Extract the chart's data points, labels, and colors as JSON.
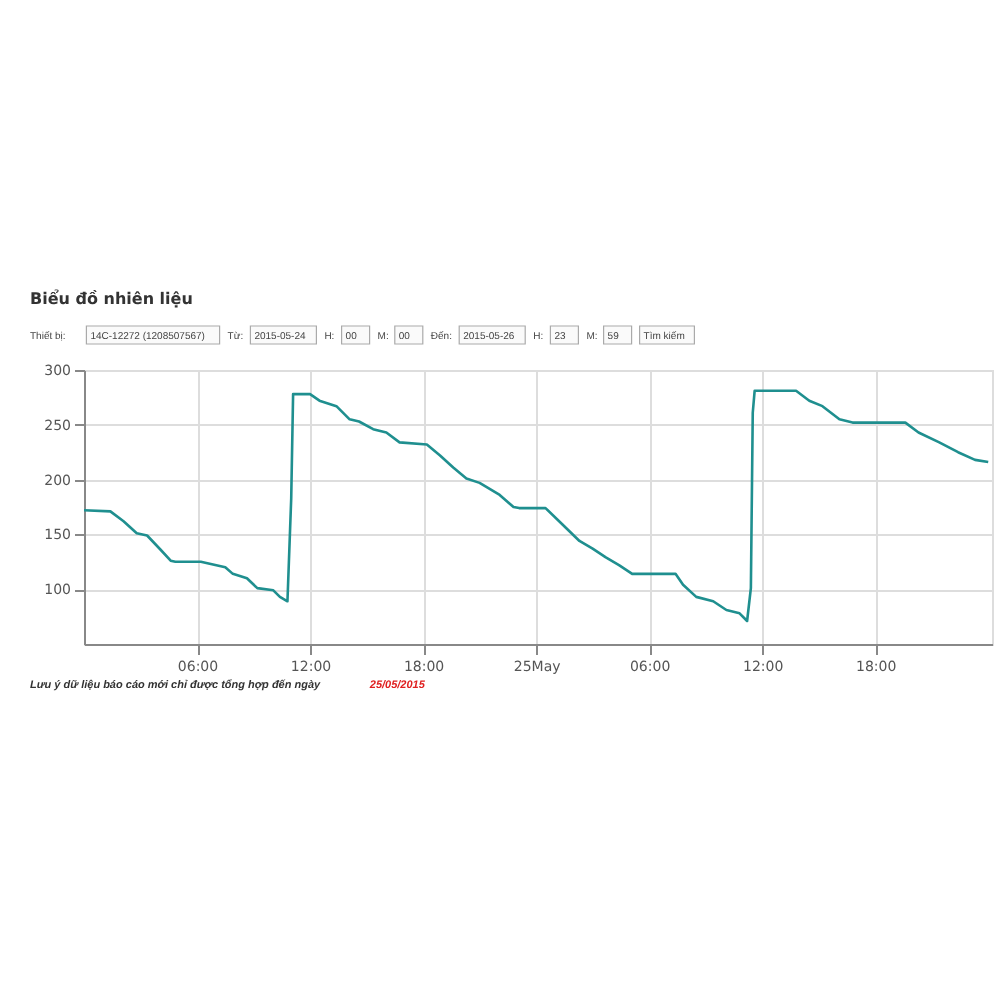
{
  "chart_data": {
    "type": "line",
    "title": "Biểu đồ nhiên liệu",
    "annotations": [
      "Thiết bị:",
      "14C-12272 (1208507567)",
      "Từ:",
      "2015-05-24",
      "H:",
      "00",
      "M:",
      "00",
      "Đến:",
      "2015-05-26",
      "H:",
      "23",
      "M:",
      "59",
      "Tìm kiếm",
      "Lưu ý dữ liệu báo cáo mới chỉ được tổng hợp đến ngày",
      "25/05/2015"
    ],
    "series": [
      {
        "color": "#1f8f8f",
        "x": [
          "2015-05-24T00:00",
          "2015-05-24T01:24",
          "2015-05-24T02:06",
          "2015-05-24T02:48",
          "2015-05-24T03:21",
          "2015-05-24T04:04",
          "2015-05-24T04:36",
          "2015-05-24T04:51",
          "2015-05-24T06:12",
          "2015-05-24T07:30",
          "2015-05-24T07:54",
          "2015-05-24T08:39",
          "2015-05-24T09:12",
          "2015-05-24T10:03",
          "2015-05-24T10:24",
          "2015-05-24T10:48",
          "2015-05-24T11:00",
          "2015-05-24T11:06",
          "2015-05-24T12:00",
          "2015-05-24T12:30",
          "2015-05-24T13:24",
          "2015-05-24T14:06",
          "2015-05-24T14:36",
          "2015-05-24T15:21",
          "2015-05-24T16:03",
          "2015-05-24T16:45",
          "2015-05-24T18:12",
          "2015-05-24T18:54",
          "2015-05-24T19:36",
          "2015-05-24T20:18",
          "2015-05-24T21:00",
          "2015-05-24T22:04",
          "2015-05-24T22:48",
          "2015-05-24T23:06",
          "2015-05-25T00:30",
          "2015-05-25T01:24",
          "2015-05-25T02:18",
          "2015-05-25T03:00",
          "2015-05-25T03:42",
          "2015-05-25T04:24",
          "2015-05-25T05:06",
          "2015-05-25T07:24",
          "2015-05-25T07:48",
          "2015-05-25T08:30",
          "2015-05-25T09:24",
          "2015-05-25T10:06",
          "2015-05-25T10:48",
          "2015-05-25T11:12",
          "2015-05-25T11:24",
          "2015-05-25T11:30",
          "2015-05-25T11:36",
          "2015-05-25T13:48",
          "2015-05-25T14:30",
          "2015-05-25T15:12",
          "2015-05-25T16:06",
          "2015-05-25T16:48",
          "2015-05-25T19:36",
          "2015-05-25T20:18",
          "2015-05-25T21:24",
          "2015-05-25T22:24",
          "2015-05-25T23:18",
          "2015-05-26T00:00"
        ],
        "values": [
          172,
          171,
          162,
          151,
          149,
          136,
          126,
          125,
          125,
          120,
          114,
          110,
          101,
          99,
          93,
          89,
          183,
          278,
          278,
          272,
          267,
          255,
          253,
          246,
          243,
          234,
          232,
          222,
          211,
          201,
          197,
          186,
          175,
          174,
          174,
          159,
          144,
          137,
          129,
          122,
          114,
          114,
          104,
          93,
          89,
          81,
          78,
          71,
          101,
          261,
          281,
          281,
          272,
          267,
          255,
          252,
          252,
          243,
          234,
          225,
          218,
          216
        ]
      }
    ],
    "xlim": [
      "2015-05-24T00:00",
      "2015-05-26T00:12"
    ],
    "xticks": [
      {
        "value": "2015-05-24T06:00",
        "label": "06:00"
      },
      {
        "value": "2015-05-24T12:00",
        "label": "12:00"
      },
      {
        "value": "2015-05-24T18:00",
        "label": "18:00"
      },
      {
        "value": "2015-05-25T00:00",
        "label": "25May"
      },
      {
        "value": "2015-05-25T06:00",
        "label": "06:00"
      },
      {
        "value": "2015-05-25T12:00",
        "label": "12:00"
      },
      {
        "value": "2015-05-25T18:00",
        "label": "18:00"
      }
    ],
    "ylim": [
      50,
      300
    ],
    "yticks": [
      100,
      150,
      200,
      250,
      300
    ],
    "grid": true,
    "marker": "none",
    "line_style": "solid"
  }
}
